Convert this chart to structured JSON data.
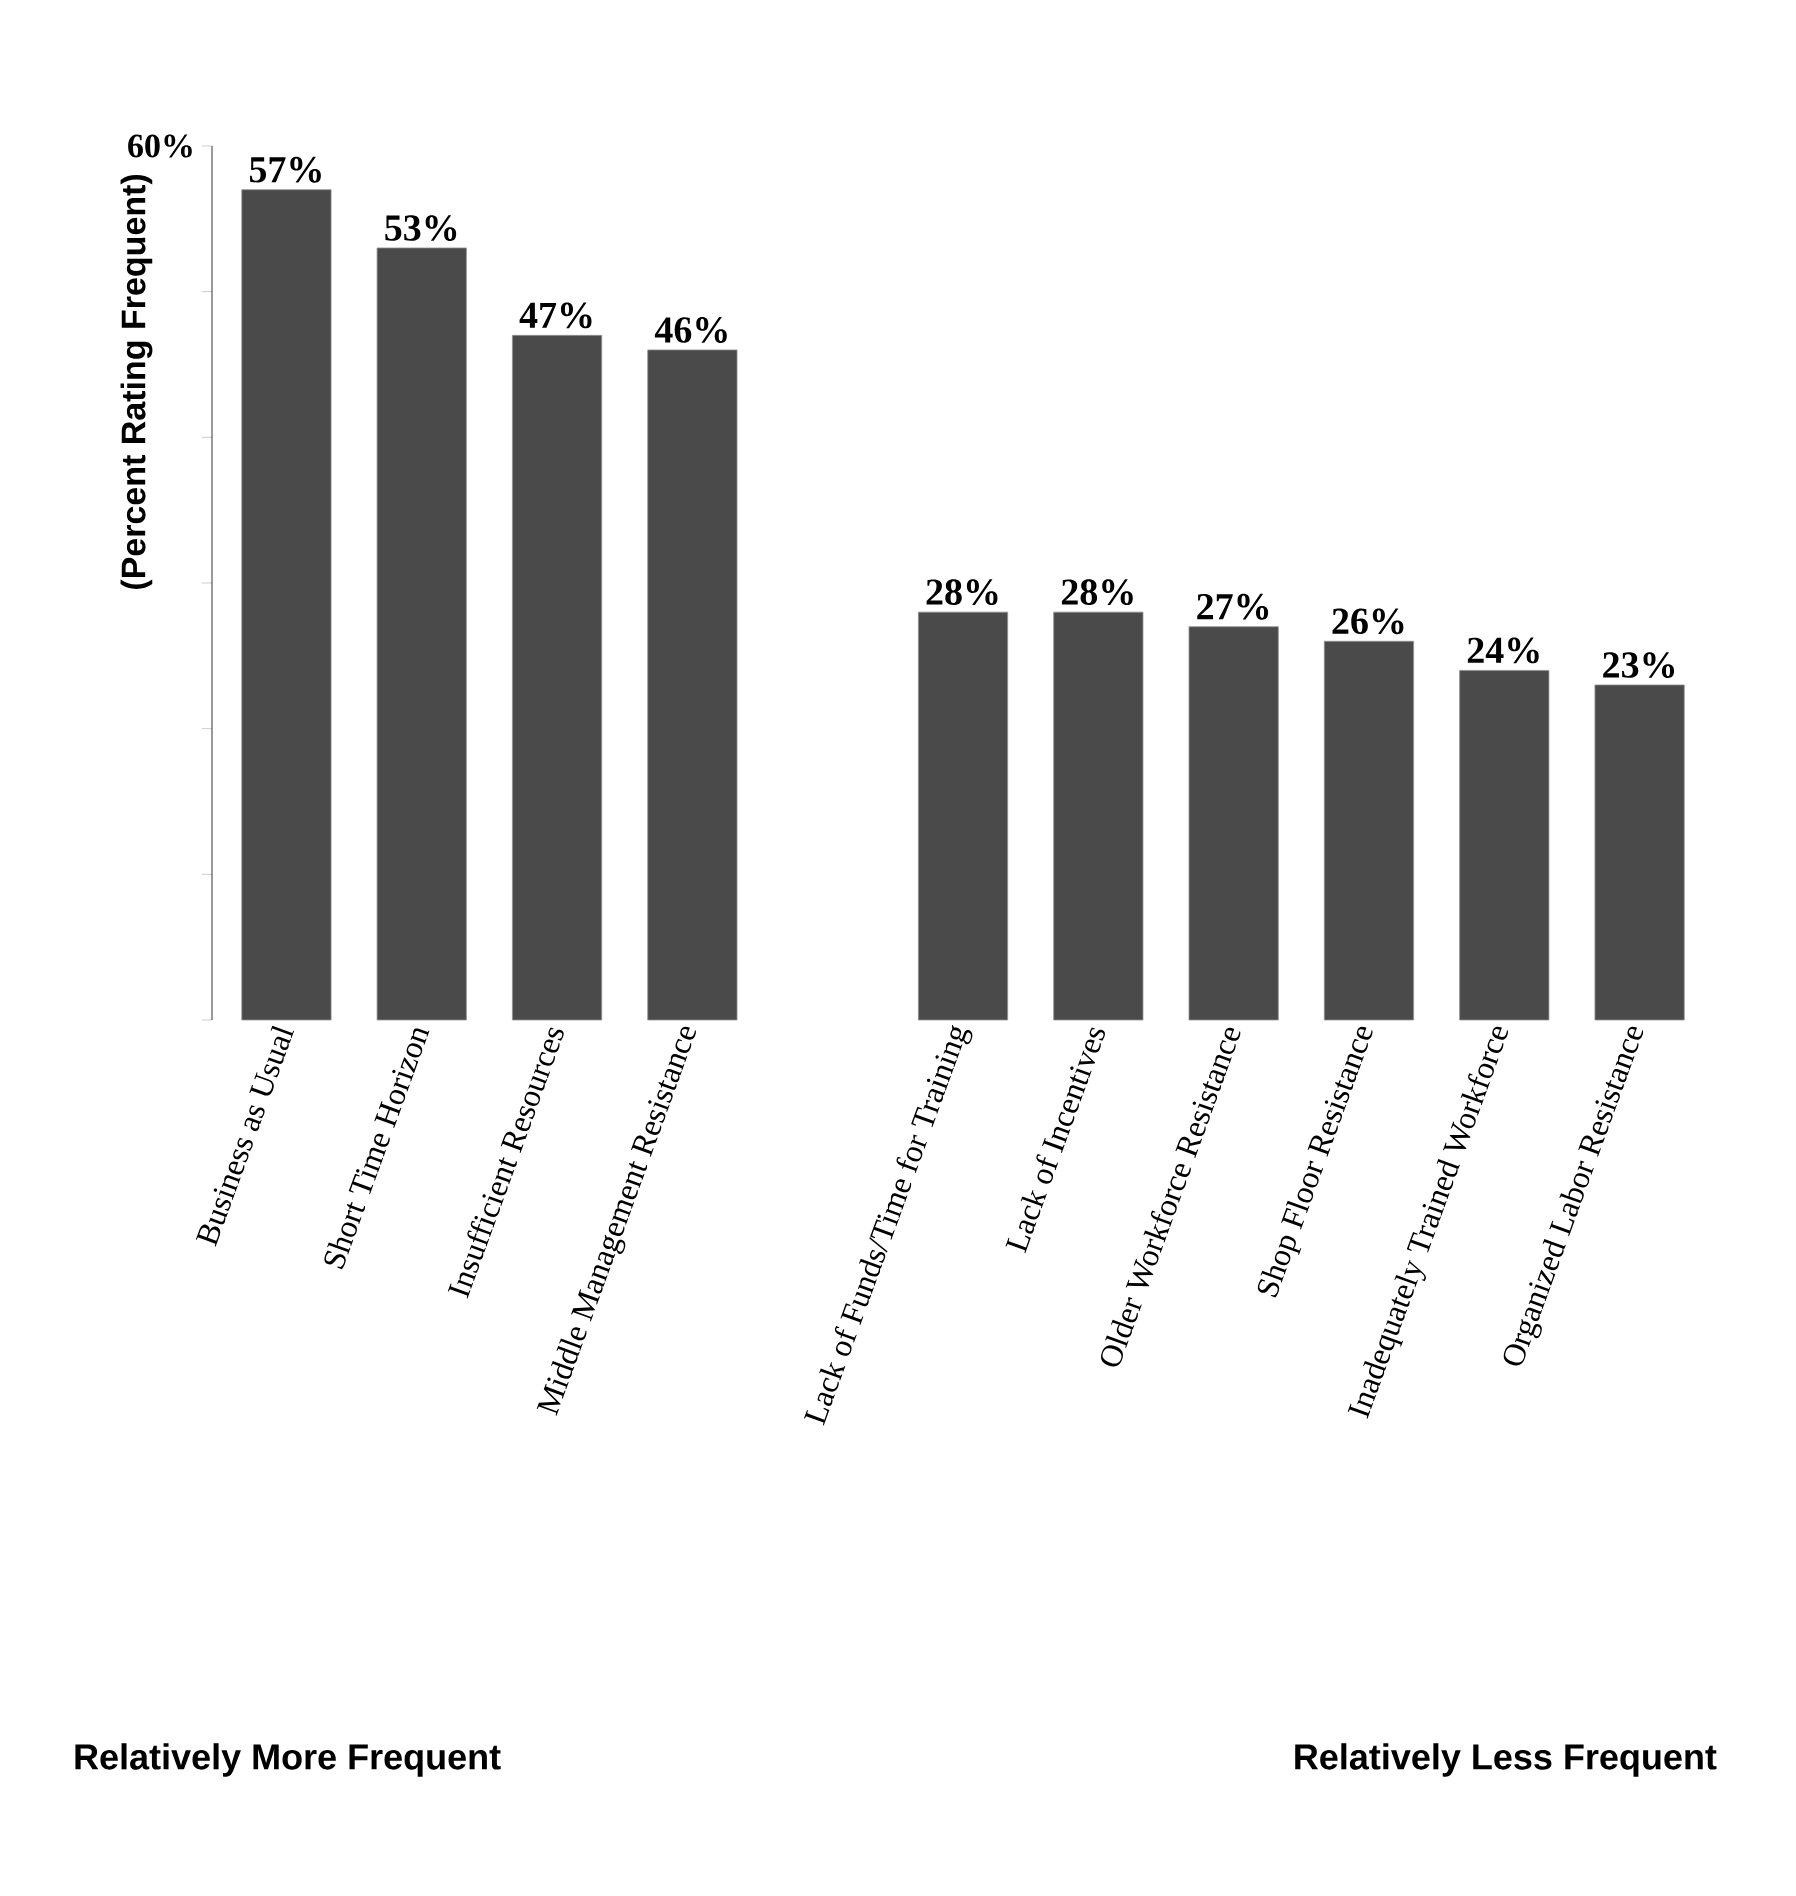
{
  "chart_data": {
    "type": "bar",
    "ylabel": "(Percent Rating Frequent)",
    "categories": [
      "Business as Usual",
      "Short Time Horizon",
      "Insufficient Resources",
      "Middle Management Resistance",
      null,
      "Lack of Funds/Time for Training",
      "Lack of Incentives",
      "Older Workforce Resistance",
      "Shop Floor Resistance",
      "Inadequately Trained Workforce",
      "Organized Labor Resistance"
    ],
    "values": [
      57,
      53,
      47,
      46,
      null,
      28,
      28,
      27,
      26,
      24,
      23
    ],
    "value_labels": [
      "57%",
      "53%",
      "47%",
      "46%",
      null,
      "28%",
      "28%",
      "27%",
      "26%",
      "24%",
      "23%"
    ],
    "color": "#4a4a4a",
    "ylim": [
      0,
      60
    ],
    "yticks": [
      {
        "value": 0,
        "label": null
      },
      {
        "value": 10,
        "label": null
      },
      {
        "value": 20,
        "label": null
      },
      {
        "value": 30,
        "label": null
      },
      {
        "value": 40,
        "label": null
      },
      {
        "value": 50,
        "label": null
      },
      {
        "value": 60,
        "label": "60%"
      }
    ],
    "annotations": [
      "Relatively More Frequent",
      "Relatively Less Frequent"
    ]
  }
}
